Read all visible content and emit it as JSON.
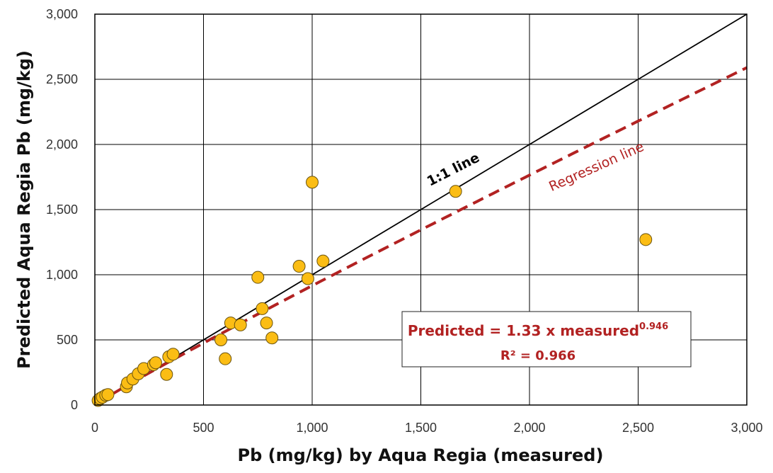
{
  "chart_data": {
    "type": "scatter",
    "xlabel": "Pb (mg/kg) by Aqua Regia (measured)",
    "ylabel": "Predicted Aqua Regia Pb (mg/kg)",
    "xlim": [
      0,
      3000
    ],
    "ylim": [
      0,
      3000
    ],
    "x_ticks": [
      "0",
      "500",
      "1,000",
      "1,500",
      "2,000",
      "2,500",
      "3,000"
    ],
    "y_ticks": [
      "0",
      "500",
      "1,000",
      "1,500",
      "2,000",
      "2,500",
      "3,000"
    ],
    "grid": true,
    "marker_color": "#fbbd14",
    "marker_edge_color": "#6b5410",
    "identity_line": {
      "label": "1:1 line",
      "color": "#000000",
      "from": [
        0,
        0
      ],
      "to": [
        3000,
        3000
      ]
    },
    "regression_line": {
      "label": "Regression line",
      "color": "#b22222",
      "style": "dashed",
      "coefficient": 1.33,
      "exponent": 0.946
    },
    "equation": {
      "main": "Predicted = 1.33 x measured",
      "exponent": "0.946",
      "r2": "R² = 0.966"
    },
    "points": [
      {
        "x": 15,
        "y": 35
      },
      {
        "x": 25,
        "y": 50
      },
      {
        "x": 35,
        "y": 60
      },
      {
        "x": 50,
        "y": 75
      },
      {
        "x": 60,
        "y": 80
      },
      {
        "x": 145,
        "y": 140
      },
      {
        "x": 150,
        "y": 170
      },
      {
        "x": 175,
        "y": 200
      },
      {
        "x": 200,
        "y": 240
      },
      {
        "x": 225,
        "y": 280
      },
      {
        "x": 270,
        "y": 310
      },
      {
        "x": 280,
        "y": 325
      },
      {
        "x": 330,
        "y": 235
      },
      {
        "x": 340,
        "y": 370
      },
      {
        "x": 360,
        "y": 390
      },
      {
        "x": 580,
        "y": 500
      },
      {
        "x": 600,
        "y": 355
      },
      {
        "x": 625,
        "y": 630
      },
      {
        "x": 670,
        "y": 615
      },
      {
        "x": 750,
        "y": 980
      },
      {
        "x": 770,
        "y": 740
      },
      {
        "x": 790,
        "y": 630
      },
      {
        "x": 815,
        "y": 515
      },
      {
        "x": 940,
        "y": 1065
      },
      {
        "x": 980,
        "y": 970
      },
      {
        "x": 1000,
        "y": 1710
      },
      {
        "x": 1050,
        "y": 1105
      },
      {
        "x": 1660,
        "y": 1640
      },
      {
        "x": 2535,
        "y": 1270
      }
    ]
  }
}
